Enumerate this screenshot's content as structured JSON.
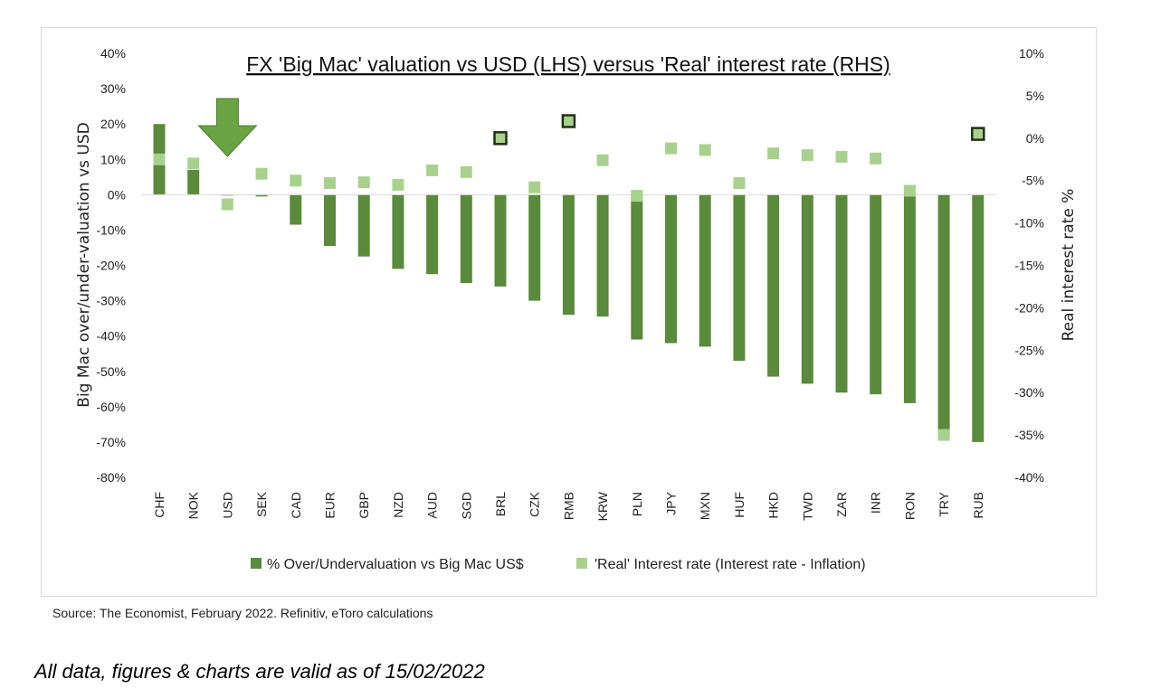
{
  "chart_data": {
    "type": "bar",
    "title": "FX 'Big Mac' valuation vs USD (LHS) versus 'Real' interest rate (RHS)",
    "categories": [
      "CHF",
      "NOK",
      "USD",
      "SEK",
      "CAD",
      "EUR",
      "GBP",
      "NZD",
      "AUD",
      "SGD",
      "BRL",
      "CZK",
      "RMB",
      "KRW",
      "PLN",
      "JPY",
      "MXN",
      "HUF",
      "HKD",
      "TWD",
      "ZAR",
      "INR",
      "RON",
      "TRY",
      "RUB"
    ],
    "series": [
      {
        "name": "% Over/Undervaluation vs Big Mac US$",
        "axis": "left",
        "type": "bar",
        "color": "#5a8a3c",
        "values": [
          20,
          7,
          0,
          -0.5,
          -8.5,
          -14.5,
          -17.5,
          -21,
          -22.5,
          -25,
          -26,
          -30,
          -34,
          -34.5,
          -41,
          -42,
          -43,
          -47,
          -51.5,
          -53.5,
          -56,
          -56.5,
          -59,
          -68,
          -70
        ]
      },
      {
        "name": "'Real' Interest rate (Interest rate - Inflation)",
        "axis": "right",
        "type": "scatter",
        "color": "#a9d18e",
        "values": [
          -2.5,
          -3,
          -7.8,
          -4.2,
          -5,
          -5.3,
          -5.2,
          -5.5,
          -3.8,
          -4,
          0,
          -5.8,
          2,
          -2.6,
          -6.8,
          -1.2,
          -1.4,
          -5.3,
          -1.8,
          -2,
          -2.2,
          -2.4,
          -6.2,
          -35,
          0.5
        ]
      }
    ],
    "highlight_outlined": [
      "BRL",
      "RMB",
      "RUB"
    ],
    "highlight_color": "#1f3310",
    "left_axis": {
      "label": "Big Mac over/under-valuation vs USD",
      "ylim": [
        -80,
        40
      ],
      "ticks": [
        "40%",
        "30%",
        "20%",
        "10%",
        "0%",
        "-10%",
        "-20%",
        "-30%",
        "-40%",
        "-50%",
        "-60%",
        "-70%",
        "-80%"
      ]
    },
    "right_axis": {
      "label": "Real interest rate %",
      "ylim": [
        -40,
        10
      ],
      "ticks": [
        "10%",
        "5%",
        "0%",
        "-5%",
        "-10%",
        "-15%",
        "-20%",
        "-25%",
        "-30%",
        "-35%",
        "-40%"
      ]
    },
    "arrow_category": "USD",
    "arrow_color": "#6aa343",
    "legend": [
      "% Over/Undervaluation vs Big Mac US$",
      "'Real' Interest rate (Interest rate - Inflation)"
    ],
    "legend_position": "bottom",
    "grid": false
  },
  "source": "Source: The Economist, February 2022. Refinitiv, eToro calculations",
  "disclaimer": "All data, figures & charts are valid as of 15/02/2022"
}
